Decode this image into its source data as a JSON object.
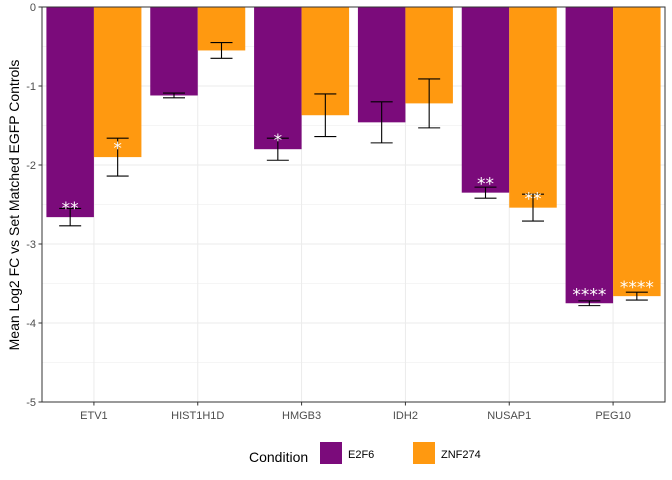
{
  "chart_data": {
    "type": "bar",
    "title": "",
    "xlabel": "",
    "ylabel": "Mean Log2 FC vs Set Matched EGFP Controls",
    "ylim": [
      -5,
      0
    ],
    "yticks": [
      "0",
      "-1",
      "-2",
      "-3",
      "-4",
      "-5"
    ],
    "ytick_values": [
      0,
      -1,
      -2,
      -3,
      -4,
      -5
    ],
    "categories": [
      "ETV1",
      "HIST1H1D",
      "HMGB3",
      "IDH2",
      "NUSAP1",
      "PEG10"
    ],
    "series": [
      {
        "name": "E2F6",
        "color": "#7B0B7B",
        "values": [
          -2.66,
          -1.12,
          -1.8,
          -1.46,
          -2.35,
          -3.75
        ],
        "error": [
          0.11,
          0.03,
          0.14,
          0.26,
          0.07,
          0.03
        ],
        "significance": [
          "**",
          "",
          "*",
          "",
          "**",
          "****"
        ]
      },
      {
        "name": "ZNF274",
        "color": "#FF9910",
        "values": [
          -1.9,
          -0.55,
          -1.37,
          -1.22,
          -2.54,
          -3.66
        ],
        "error": [
          0.24,
          0.1,
          0.27,
          0.31,
          0.17,
          0.05
        ],
        "significance": [
          "*",
          "",
          "",
          "",
          "**",
          "****"
        ]
      }
    ],
    "grid": true,
    "legend": {
      "title": "Condition",
      "position": "bottom"
    }
  }
}
